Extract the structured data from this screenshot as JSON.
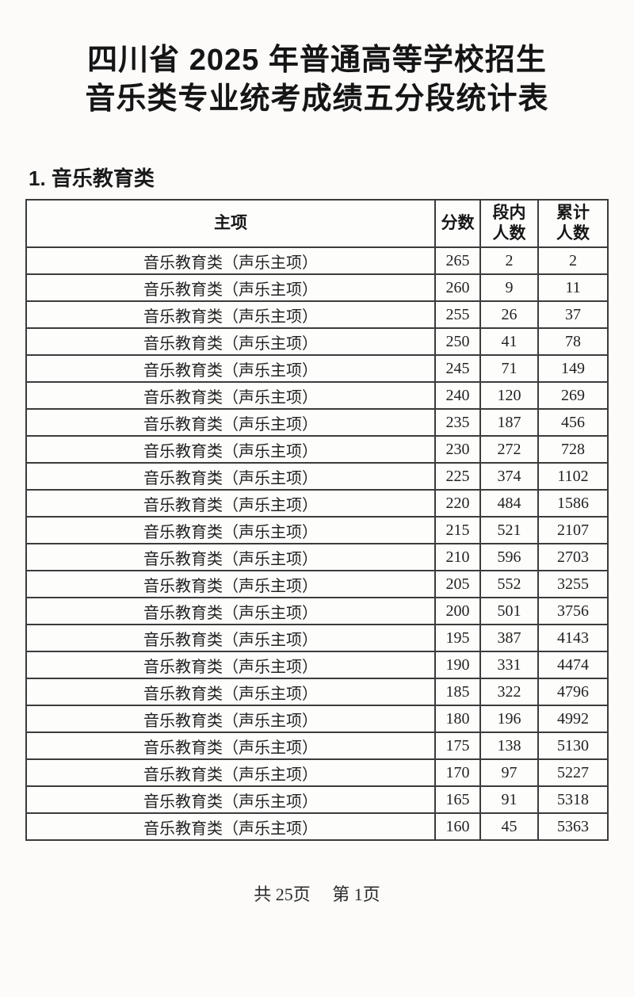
{
  "page": {
    "title_line1": "四川省 2025 年普通高等学校招生",
    "title_line2": "音乐类专业统考成绩五分段统计表",
    "section_heading": "1. 音乐教育类",
    "footer": {
      "total_pages": "共 25页",
      "current_page": "第 1页"
    }
  },
  "table": {
    "headers": [
      "主项",
      "分数",
      "段内\n人数",
      "累计\n人数"
    ],
    "header_keys": [
      "major",
      "score",
      "segment-count",
      "cumulative-count"
    ],
    "rows": [
      [
        "音乐教育类（声乐主项）",
        "265",
        "2",
        "2"
      ],
      [
        "音乐教育类（声乐主项）",
        "260",
        "9",
        "11"
      ],
      [
        "音乐教育类（声乐主项）",
        "255",
        "26",
        "37"
      ],
      [
        "音乐教育类（声乐主项）",
        "250",
        "41",
        "78"
      ],
      [
        "音乐教育类（声乐主项）",
        "245",
        "71",
        "149"
      ],
      [
        "音乐教育类（声乐主项）",
        "240",
        "120",
        "269"
      ],
      [
        "音乐教育类（声乐主项）",
        "235",
        "187",
        "456"
      ],
      [
        "音乐教育类（声乐主项）",
        "230",
        "272",
        "728"
      ],
      [
        "音乐教育类（声乐主项）",
        "225",
        "374",
        "1102"
      ],
      [
        "音乐教育类（声乐主项）",
        "220",
        "484",
        "1586"
      ],
      [
        "音乐教育类（声乐主项）",
        "215",
        "521",
        "2107"
      ],
      [
        "音乐教育类（声乐主项）",
        "210",
        "596",
        "2703"
      ],
      [
        "音乐教育类（声乐主项）",
        "205",
        "552",
        "3255"
      ],
      [
        "音乐教育类（声乐主项）",
        "200",
        "501",
        "3756"
      ],
      [
        "音乐教育类（声乐主项）",
        "195",
        "387",
        "4143"
      ],
      [
        "音乐教育类（声乐主项）",
        "190",
        "331",
        "4474"
      ],
      [
        "音乐教育类（声乐主项）",
        "185",
        "322",
        "4796"
      ],
      [
        "音乐教育类（声乐主项）",
        "180",
        "196",
        "4992"
      ],
      [
        "音乐教育类（声乐主项）",
        "175",
        "138",
        "5130"
      ],
      [
        "音乐教育类（声乐主项）",
        "170",
        "97",
        "5227"
      ],
      [
        "音乐教育类（声乐主项）",
        "165",
        "91",
        "5318"
      ],
      [
        "音乐教育类（声乐主项）",
        "160",
        "45",
        "5363"
      ]
    ]
  }
}
